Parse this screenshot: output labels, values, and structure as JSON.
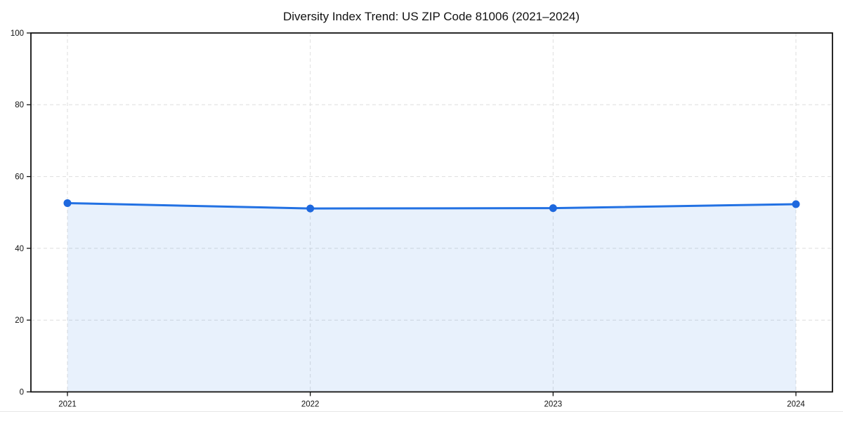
{
  "chart_data": {
    "type": "area",
    "title": "Diversity Index Trend: US ZIP Code 81006 (2021–2024)",
    "categories": [
      "2021",
      "2022",
      "2023",
      "2024"
    ],
    "series": [
      {
        "name": "Diversity Index",
        "values": [
          52.6,
          51.1,
          51.2,
          52.3
        ]
      }
    ],
    "xlabel": "",
    "ylabel": "",
    "ylim": [
      0,
      100
    ],
    "yticks": [
      0,
      20,
      40,
      60,
      80,
      100
    ],
    "grid": true,
    "grid_style": "dashed",
    "legend": false,
    "colors": {
      "line": "#2271e3",
      "marker": "#1e68de",
      "fill": "rgba(34,113,227,0.10)",
      "grid": "#dedede",
      "axis": "#111111",
      "text": "#111111",
      "background": "#ffffff"
    }
  }
}
